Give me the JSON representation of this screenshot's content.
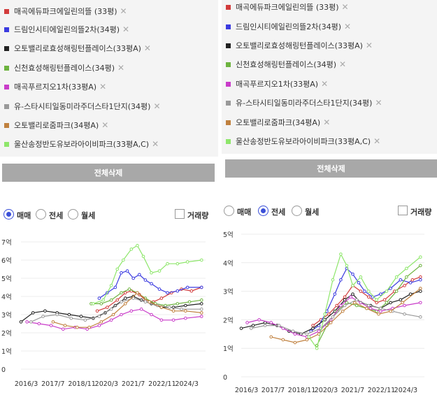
{
  "legend_items": [
    {
      "label": "매곡에듀파크에일린의뜰 (33평)",
      "color": "#d23b3b"
    },
    {
      "label": "드림인시티에일린의뜰2차(34평)",
      "color": "#3b3be0"
    },
    {
      "label": "오토밸리로효성해링턴플레이스(33평A)",
      "color": "#222222"
    },
    {
      "label": "신천효성해링턴플레이스(34평)",
      "color": "#6db33f"
    },
    {
      "label": "매곡푸르지오1차(33평A)",
      "color": "#c93cc9"
    },
    {
      "label": "유-스타시티일동미라주더스타1단지(34평)",
      "color": "#999999"
    },
    {
      "label": "오토밸리로줌파크(34평A)",
      "color": "#c0813f"
    },
    {
      "label": "울산송정반도유보라아이비파크(33평A,C)",
      "color": "#8ee66b"
    }
  ],
  "remove_glyph": "✕",
  "clear_all_label": "전체삭제",
  "trade_types": [
    "매매",
    "전세",
    "월세"
  ],
  "volume_label": "거래량",
  "colors": {
    "accent": "#3a4fd8",
    "button": "#a8a8a8",
    "legend_bg": "#f4f4f4"
  },
  "chart_data": [
    {
      "type": "line",
      "selected_trade_type": "매매",
      "x_tick_labels": [
        "2016/3",
        "2017/7",
        "2018/11",
        "2020/3",
        "2021/7",
        "2022/11",
        "2024/3"
      ],
      "x_range": [
        2016.0,
        2025.2
      ],
      "y_tick_labels": [
        "0",
        "1억",
        "2억",
        "3억",
        "4억",
        "5억",
        "6억",
        "7억"
      ],
      "ylim": [
        0,
        7
      ],
      "grid": "horizontal",
      "series": [
        {
          "name": "매곡에듀파크에일린의뜰 (33평)",
          "x": [
            2019.8,
            2020.3,
            2020.8,
            2021.2,
            2021.5,
            2021.9,
            2022.2,
            2022.6,
            2023.0,
            2023.5,
            2024.0,
            2024.5,
            2025.0
          ],
          "y": [
            3.2,
            3.4,
            3.8,
            4.2,
            4.3,
            4.1,
            3.8,
            3.7,
            3.9,
            4.2,
            4.4,
            4.3,
            4.5
          ]
        },
        {
          "name": "드림인시티에일린의뜰2차(34평)",
          "x": [
            2019.9,
            2020.3,
            2020.7,
            2021.0,
            2021.3,
            2021.6,
            2021.9,
            2022.2,
            2022.5,
            2022.9,
            2023.3,
            2023.8,
            2024.3,
            2025.0
          ],
          "y": [
            3.9,
            4.2,
            4.5,
            5.3,
            5.4,
            5.0,
            5.2,
            4.9,
            4.7,
            4.4,
            4.2,
            4.3,
            4.5,
            4.5
          ]
        },
        {
          "name": "오토밸리로효성해링턴플레이스(33평A)",
          "x": [
            2016.0,
            2016.6,
            2017.2,
            2017.8,
            2018.4,
            2019.0,
            2019.6,
            2020.2,
            2020.7,
            2021.2,
            2021.6,
            2022.0,
            2022.5,
            2023.0,
            2023.6,
            2024.2,
            2025.0
          ],
          "y": [
            2.6,
            3.1,
            3.2,
            3.1,
            3.0,
            2.9,
            2.8,
            3.1,
            3.5,
            3.9,
            4.0,
            3.8,
            3.6,
            3.4,
            3.4,
            3.5,
            3.6
          ]
        },
        {
          "name": "신천효성해링턴플레이스(34평)",
          "x": [
            2019.5,
            2020.0,
            2020.5,
            2021.0,
            2021.4,
            2021.8,
            2022.2,
            2022.7,
            2023.2,
            2023.8,
            2024.4,
            2025.0
          ],
          "y": [
            3.6,
            3.6,
            3.8,
            4.2,
            4.4,
            4.2,
            3.9,
            3.6,
            3.5,
            3.6,
            3.7,
            3.8
          ]
        },
        {
          "name": "매곡푸르지오1차(33평A)",
          "x": [
            2016.3,
            2016.9,
            2017.5,
            2018.1,
            2018.7,
            2019.3,
            2019.9,
            2020.5,
            2021.0,
            2021.5,
            2022.0,
            2022.5,
            2023.0,
            2023.6,
            2024.2,
            2025.0
          ],
          "y": [
            2.6,
            2.5,
            2.4,
            2.2,
            2.3,
            2.2,
            2.4,
            2.7,
            3.0,
            3.2,
            3.3,
            3.0,
            2.7,
            2.7,
            2.8,
            2.9
          ]
        },
        {
          "name": "유-스타시티일동미라주더스타1단지(34평)",
          "x": [
            2016.5,
            2017.1,
            2017.8,
            2018.5,
            2019.2,
            2019.9,
            2020.5,
            2021.0,
            2021.6,
            2022.2,
            2022.8,
            2023.4,
            2024.0,
            2025.0
          ],
          "y": [
            2.6,
            2.9,
            3.0,
            2.8,
            2.7,
            2.9,
            3.3,
            3.7,
            3.9,
            3.7,
            3.5,
            3.4,
            3.3,
            3.3
          ]
        },
        {
          "name": "오토밸리로줌파크(34평A)",
          "x": [
            2017.6,
            2018.2,
            2018.8,
            2019.4,
            2020.0,
            2020.6,
            2021.2,
            2021.8,
            2022.4,
            2023.0,
            2023.6,
            2024.2,
            2025.0
          ],
          "y": [
            2.6,
            2.4,
            2.3,
            2.3,
            2.6,
            3.0,
            3.6,
            4.2,
            3.7,
            3.4,
            3.2,
            3.2,
            3.1
          ]
        },
        {
          "name": "울산송정반도유보라아이비파크(33평A,C)",
          "x": [
            2019.6,
            2020.1,
            2020.5,
            2020.8,
            2021.1,
            2021.5,
            2021.8,
            2022.1,
            2022.5,
            2022.9,
            2023.3,
            2023.8,
            2024.3,
            2025.0
          ],
          "y": [
            3.6,
            3.8,
            4.6,
            5.5,
            6.0,
            6.6,
            6.8,
            6.2,
            5.3,
            5.4,
            5.8,
            5.8,
            5.9,
            6.0
          ]
        }
      ]
    },
    {
      "type": "line",
      "selected_trade_type": "전세",
      "x_tick_labels": [
        "2016/3",
        "2017/7",
        "2018/11",
        "2020/3",
        "2021/7",
        "2022/11",
        "2024/3"
      ],
      "x_range": [
        2016.0,
        2025.2
      ],
      "y_tick_labels": [
        "0",
        "1억",
        "2억",
        "3억",
        "4억",
        "5억"
      ],
      "ylim": [
        0,
        5
      ],
      "grid": "horizontal",
      "series": [
        {
          "name": "매곡에듀파크에일린의뜰 (33평)",
          "x": [
            2019.6,
            2020.0,
            2020.4,
            2020.8,
            2021.2,
            2021.6,
            2022.0,
            2022.4,
            2022.8,
            2023.2,
            2023.7,
            2024.2,
            2024.6,
            2025.0
          ],
          "y": [
            1.8,
            2.0,
            2.2,
            2.5,
            2.8,
            3.2,
            3.0,
            2.8,
            2.6,
            2.7,
            3.0,
            3.2,
            3.4,
            3.5
          ]
        },
        {
          "name": "드림인시티에일린의뜰2차(34평)",
          "x": [
            2019.5,
            2019.9,
            2020.3,
            2020.7,
            2021.0,
            2021.3,
            2021.6,
            2021.9,
            2022.2,
            2022.6,
            2023.0,
            2023.5,
            2024.0,
            2024.5,
            2025.0
          ],
          "y": [
            1.6,
            1.8,
            2.3,
            2.9,
            3.4,
            3.8,
            3.6,
            3.3,
            3.0,
            2.8,
            2.9,
            3.1,
            3.4,
            3.3,
            3.4
          ]
        },
        {
          "name": "오토밸리로효성해링턴플레이스(33평A)",
          "x": [
            2016.0,
            2016.6,
            2017.2,
            2017.8,
            2018.4,
            2019.0,
            2019.6,
            2020.2,
            2020.7,
            2021.2,
            2021.6,
            2022.0,
            2022.5,
            2023.0,
            2023.5,
            2024.0,
            2024.5,
            2025.0
          ],
          "y": [
            1.7,
            1.8,
            1.9,
            1.8,
            1.6,
            1.5,
            1.7,
            2.0,
            2.3,
            2.7,
            2.9,
            2.6,
            2.5,
            2.4,
            2.6,
            2.7,
            2.9,
            3.0
          ]
        },
        {
          "name": "신천효성해링턴플레이스(34평)",
          "x": [
            2019.8,
            2020.3,
            2020.8,
            2021.3,
            2021.8,
            2022.3,
            2022.8,
            2023.3,
            2023.8,
            2024.3,
            2025.0
          ],
          "y": [
            1.1,
            1.8,
            2.3,
            2.6,
            2.5,
            2.4,
            2.3,
            2.6,
            3.0,
            3.5,
            3.9
          ]
        },
        {
          "name": "매곡푸르지오1차(33평A)",
          "x": [
            2016.3,
            2016.9,
            2017.5,
            2018.1,
            2018.7,
            2019.3,
            2019.9,
            2020.5,
            2021.0,
            2021.5,
            2022.0,
            2022.5,
            2023.0,
            2023.6,
            2024.2,
            2025.0
          ],
          "y": [
            1.9,
            2.0,
            1.9,
            1.7,
            1.5,
            1.4,
            1.6,
            2.0,
            2.5,
            2.8,
            2.6,
            2.4,
            2.3,
            2.4,
            2.5,
            2.6
          ]
        },
        {
          "name": "유-스타시티일동미라주더스타1단지(34평)",
          "x": [
            2016.5,
            2017.2,
            2017.9,
            2018.6,
            2019.3,
            2020.0,
            2020.6,
            2021.2,
            2021.8,
            2022.4,
            2023.0,
            2023.6,
            2024.2,
            2025.0
          ],
          "y": [
            1.7,
            1.8,
            1.8,
            1.6,
            1.5,
            1.7,
            2.1,
            2.5,
            2.7,
            2.5,
            2.4,
            2.3,
            2.2,
            2.1
          ]
        },
        {
          "name": "오토밸리로줌파크(34평A)",
          "x": [
            2017.5,
            2018.1,
            2018.7,
            2019.3,
            2019.9,
            2020.5,
            2021.1,
            2021.7,
            2022.3,
            2022.9,
            2023.5,
            2024.1,
            2025.0
          ],
          "y": [
            1.4,
            1.3,
            1.2,
            1.3,
            1.5,
            1.9,
            2.3,
            2.6,
            2.4,
            2.2,
            2.3,
            2.6,
            3.1
          ]
        },
        {
          "name": "울산송정반도유보라아이비파크(33평A,C)",
          "x": [
            2019.4,
            2019.8,
            2020.2,
            2020.6,
            2021.0,
            2021.3,
            2021.6,
            2022.0,
            2022.4,
            2022.8,
            2023.3,
            2023.8,
            2024.3,
            2025.0
          ],
          "y": [
            1.4,
            1.0,
            2.2,
            3.4,
            4.3,
            3.9,
            3.2,
            3.5,
            3.0,
            2.7,
            3.0,
            3.5,
            3.8,
            4.2
          ]
        }
      ]
    }
  ]
}
